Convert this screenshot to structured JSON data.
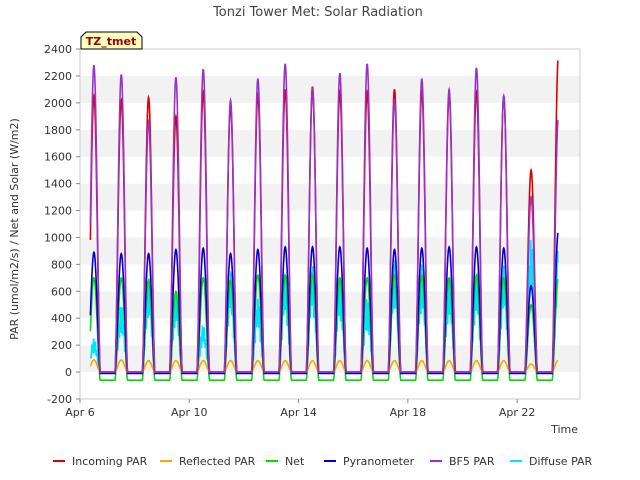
{
  "chart_data": {
    "type": "line",
    "title": "Tonzi Tower Met: Solar Radiation",
    "xlabel": "Time",
    "ylabel": "PAR (umol/m2/s) / Net and Solar (W/m2)",
    "annotation": "TZ_tmet",
    "x_range_days": [
      6.0,
      24.3
    ],
    "ylim": [
      -200,
      2400
    ],
    "y_ticks": [
      -200,
      0,
      200,
      400,
      600,
      800,
      1000,
      1200,
      1400,
      1600,
      1800,
      2000,
      2200,
      2400
    ],
    "x_ticks": [
      {
        "day": 6,
        "label": "Apr 6"
      },
      {
        "day": 10,
        "label": "Apr 10"
      },
      {
        "day": 14,
        "label": "Apr 14"
      },
      {
        "day": 18,
        "label": "Apr 18"
      },
      {
        "day": 22,
        "label": "Apr 22"
      }
    ],
    "grid": "horizontal bands",
    "legend_position": "bottom",
    "days": [
      6,
      7,
      8,
      9,
      10,
      11,
      12,
      13,
      14,
      15,
      16,
      17,
      18,
      19,
      20,
      21,
      22,
      23
    ],
    "series": [
      {
        "name": "Incoming PAR",
        "color": "#dd0000",
        "night": 0,
        "daily_peaks": [
          2050,
          2020,
          2040,
          1900,
          2080,
          1980,
          2060,
          2100,
          2120,
          2080,
          2080,
          2100,
          2080,
          2060,
          2080,
          2050,
          1500,
          2350
        ]
      },
      {
        "name": "Reflected PAR",
        "color": "#ffa500",
        "night": 0,
        "daily_peaks": [
          90,
          90,
          85,
          85,
          85,
          85,
          85,
          85,
          85,
          85,
          85,
          85,
          85,
          85,
          85,
          85,
          60,
          90
        ]
      },
      {
        "name": "Net",
        "color": "#00dd00",
        "night": -60,
        "daily_peaks": [
          700,
          700,
          680,
          600,
          700,
          680,
          720,
          720,
          720,
          700,
          700,
          720,
          720,
          700,
          720,
          700,
          500,
          700
        ]
      },
      {
        "name": "Pyranometer",
        "color": "#0000cc",
        "night": -10,
        "daily_peaks": [
          890,
          880,
          880,
          910,
          920,
          880,
          910,
          930,
          930,
          930,
          920,
          910,
          920,
          930,
          930,
          920,
          640,
          1050
        ]
      },
      {
        "name": "BF5 PAR",
        "color": "#9932cc",
        "night": 0,
        "daily_peaks": [
          2280,
          2210,
          1860,
          2190,
          2250,
          2020,
          2180,
          2290,
          2100,
          2220,
          2290,
          2020,
          2180,
          2100,
          2260,
          2050,
          1300,
          1900
        ]
      },
      {
        "name": "Diffuse PAR",
        "color": "#00e5ff",
        "night": 0,
        "daily_peaks": [
          250,
          500,
          700,
          600,
          350,
          750,
          550,
          750,
          800,
          700,
          550,
          850,
          800,
          700,
          750,
          800,
          1000,
          950
        ]
      }
    ]
  }
}
